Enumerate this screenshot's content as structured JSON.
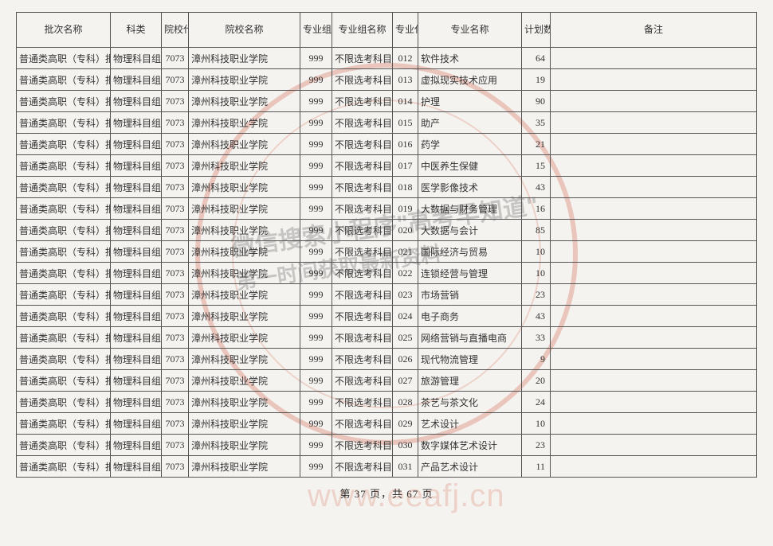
{
  "columns": [
    "批次名称",
    "科类",
    "院校代号",
    "院校名称",
    "专业组代号",
    "专业组名称",
    "专业代号",
    "专业名称",
    "计划数",
    "备注"
  ],
  "common": {
    "batch": "普通类高职（专科）批",
    "subject": "物理科目组",
    "school_code": "7073",
    "school_name": "漳州科技职业学院",
    "group_code": "999",
    "group_name": "不限选考科目"
  },
  "rows": [
    {
      "major_code": "012",
      "major_name": "软件技术",
      "plan": 64
    },
    {
      "major_code": "013",
      "major_name": "虚拟现实技术应用",
      "plan": 19
    },
    {
      "major_code": "014",
      "major_name": "护理",
      "plan": 90
    },
    {
      "major_code": "015",
      "major_name": "助产",
      "plan": 35
    },
    {
      "major_code": "016",
      "major_name": "药学",
      "plan": 21
    },
    {
      "major_code": "017",
      "major_name": "中医养生保健",
      "plan": 15
    },
    {
      "major_code": "018",
      "major_name": "医学影像技术",
      "plan": 43
    },
    {
      "major_code": "019",
      "major_name": "大数据与财务管理",
      "plan": 16
    },
    {
      "major_code": "020",
      "major_name": "大数据与会计",
      "plan": 85
    },
    {
      "major_code": "021",
      "major_name": "国际经济与贸易",
      "plan": 10
    },
    {
      "major_code": "022",
      "major_name": "连锁经营与管理",
      "plan": 10
    },
    {
      "major_code": "023",
      "major_name": "市场营销",
      "plan": 23
    },
    {
      "major_code": "024",
      "major_name": "电子商务",
      "plan": 43
    },
    {
      "major_code": "025",
      "major_name": "网络营销与直播电商",
      "plan": 33
    },
    {
      "major_code": "026",
      "major_name": "现代物流管理",
      "plan": 9
    },
    {
      "major_code": "027",
      "major_name": "旅游管理",
      "plan": 20
    },
    {
      "major_code": "028",
      "major_name": "茶艺与茶文化",
      "plan": 24
    },
    {
      "major_code": "029",
      "major_name": "艺术设计",
      "plan": 10
    },
    {
      "major_code": "030",
      "major_name": "数字媒体艺术设计",
      "plan": 23
    },
    {
      "major_code": "031",
      "major_name": "产品艺术设计",
      "plan": 11
    }
  ],
  "pager": {
    "text": "第 37 页，共 67 页"
  },
  "watermark": {
    "line1": "微信搜索小程序\"高考早知道\"",
    "line2": "第一时间获取最新资料",
    "url": "www.eeafj.cn"
  }
}
